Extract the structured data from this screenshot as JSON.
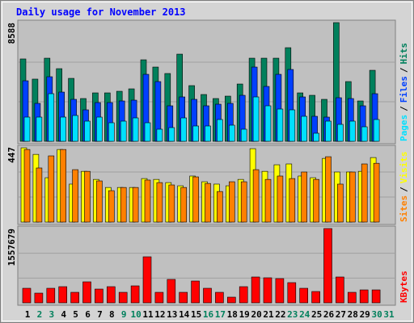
{
  "title": "Daily usage for November 2013",
  "chart_data": [
    {
      "type": "bar",
      "ylim": [
        0,
        8588
      ],
      "yticks": [
        8588
      ],
      "legend_separator": "/",
      "series": [
        {
          "name": "Hits",
          "color": "#00805c",
          "values": [
            5960,
            4500,
            6015,
            5256,
            4555,
            3095,
            3504,
            3504,
            3620,
            3796,
            5898,
            5373,
            4906,
            6307,
            4030,
            3387,
            3095,
            3270,
            4146,
            6015,
            6015,
            6015,
            6774,
            3504,
            3329,
            3037,
            8588,
            4322,
            2920,
            5139,
            null
          ]
        },
        {
          "name": "Files",
          "color": "#0040ff",
          "values": [
            4380,
            2745,
            4672,
            3562,
            3037,
            2278,
            2803,
            2803,
            2920,
            2978,
            4847,
            4322,
            2570,
            3212,
            3037,
            2570,
            2686,
            2745,
            3329,
            5373,
            3971,
            4847,
            5198,
            3212,
            1810,
            1752,
            3154,
            3095,
            2570,
            3446,
            null
          ]
        },
        {
          "name": "Pages",
          "color": "#00e0ff",
          "values": [
            1752,
            1752,
            3446,
            1752,
            1869,
            1460,
            1752,
            1343,
            1460,
            1694,
            1343,
            876,
            993,
            1694,
            1110,
            1110,
            1577,
            1168,
            876,
            3212,
            2570,
            2336,
            2278,
            1810,
            584,
            1460,
            1226,
            1460,
            1051,
            1577,
            null
          ]
        }
      ]
    },
    {
      "type": "bar",
      "ylim": [
        0,
        447
      ],
      "yticks": [
        447
      ],
      "legend_separator": "/",
      "series": [
        {
          "name": "Visits",
          "color": "#ffff00",
          "values": [
            442,
            403,
            264,
            432,
            226,
            302,
            254,
            206,
            206,
            206,
            259,
            254,
            235,
            216,
            274,
            240,
            226,
            216,
            254,
            437,
            302,
            341,
            346,
            274,
            264,
            379,
            298,
            298,
            302,
            384,
            null
          ]
        },
        {
          "name": "Sites",
          "color": "#ff8000",
          "values": [
            432,
            322,
            394,
            432,
            312,
            302,
            245,
            187,
            206,
            206,
            250,
            235,
            221,
            206,
            269,
            230,
            182,
            240,
            240,
            312,
            254,
            274,
            259,
            298,
            254,
            389,
            226,
            298,
            346,
            350,
            null
          ]
        }
      ]
    },
    {
      "type": "bar",
      "ylim": [
        0,
        1557679
      ],
      "yticks": [
        1557679
      ],
      "categories": [
        "1",
        "2",
        "3",
        "4",
        "5",
        "6",
        "7",
        "8",
        "9",
        "10",
        "11",
        "12",
        "13",
        "14",
        "15",
        "16",
        "17",
        "18",
        "19",
        "20",
        "21",
        "22",
        "23",
        "24",
        "25",
        "26",
        "27",
        "28",
        "29",
        "30",
        "31"
      ],
      "label_colors": [
        "#000000",
        "#00805c",
        "#00805c",
        "#000000",
        "#000000",
        "#000000",
        "#000000",
        "#000000",
        "#00805c",
        "#00805c",
        "#000000",
        "#000000",
        "#000000",
        "#000000",
        "#000000",
        "#00805c",
        "#00805c",
        "#000000",
        "#000000",
        "#000000",
        "#000000",
        "#000000",
        "#00805c",
        "#00805c",
        "#000000",
        "#000000",
        "#000000",
        "#000000",
        "#000000",
        "#00805c",
        "#00805c"
      ],
      "series": [
        {
          "name": "KBytes",
          "color": "#ff0000",
          "values": [
            304758,
            203172,
            304758,
            338620,
            220103,
            440206,
            287827,
            338620,
            220103,
            355551,
            965067,
            220103,
            490999,
            220103,
            457137,
            304758,
            220103,
            118517,
            338620,
            541792,
            524861,
            507930,
            423275,
            304758,
            237034,
            1557679,
            541792,
            220103,
            270896,
            270896,
            null
          ]
        }
      ]
    }
  ]
}
